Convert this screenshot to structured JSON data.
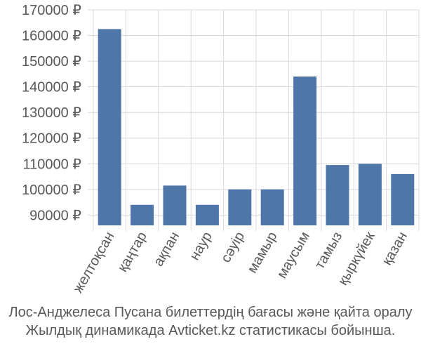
{
  "chart_data": {
    "type": "bar",
    "categories": [
      "желтоқсан",
      "қаңтар",
      "ақпан",
      "наур",
      "сәуір",
      "мамыр",
      "маусым",
      "тамыз",
      "қыркүйек",
      "қазан"
    ],
    "values": [
      162500,
      94000,
      101500,
      94000,
      100000,
      100000,
      144000,
      109500,
      110000,
      106000
    ],
    "ylim": [
      86000,
      170000
    ],
    "yticks": [
      90000,
      100000,
      110000,
      120000,
      130000,
      140000,
      150000,
      160000,
      170000
    ],
    "ytick_labels": [
      "90000 ₽",
      "100000 ₽",
      "110000 ₽",
      "120000 ₽",
      "130000 ₽",
      "140000 ₽",
      "150000 ₽",
      "160000 ₽",
      "170000 ₽"
    ],
    "grid": true,
    "bar_color": "#4e76a8"
  },
  "caption": {
    "line1": "Лос-Анджелеса Пусана билеттердің бағасы және қайта оралу",
    "line2": "Жылдық динамикада Avticket.kz статистикасы бойынша."
  }
}
